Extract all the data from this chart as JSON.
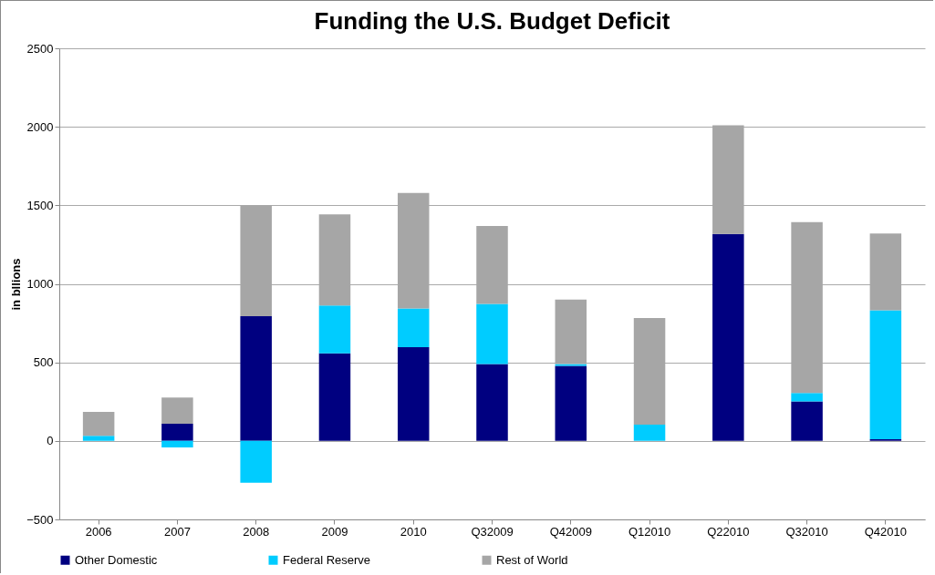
{
  "chart_data": {
    "type": "bar",
    "title": "Funding the U.S. Budget Deficit",
    "ylabel": "in bllions",
    "categories": [
      "2006",
      "2007",
      "2008",
      "2009",
      "2010",
      "Q32009",
      "Q42009",
      "Q12010",
      "Q22010",
      "Q32010",
      "Q42010"
    ],
    "stacked": true,
    "series": [
      {
        "name": "Other Domestic",
        "color": "#000080",
        "values": [
          0,
          109,
          794,
          558,
          597,
          490,
          478,
          0,
          1317,
          251,
          10
        ]
      },
      {
        "name": "Federal Reserve",
        "color": "#00ccff",
        "values": [
          33,
          -41,
          -266,
          304,
          247,
          383,
          12,
          103,
          0,
          54,
          822
        ]
      },
      {
        "name": "Rest of World",
        "color": "#a6a6a6",
        "values": [
          152,
          167,
          706,
          581,
          735,
          496,
          410,
          679,
          692,
          1088,
          489
        ]
      }
    ],
    "ylim": [
      -500,
      2500
    ],
    "yticks": [
      -500,
      0,
      500,
      1000,
      1500,
      2000,
      2500
    ],
    "grid": "y",
    "legend": "bottom"
  }
}
